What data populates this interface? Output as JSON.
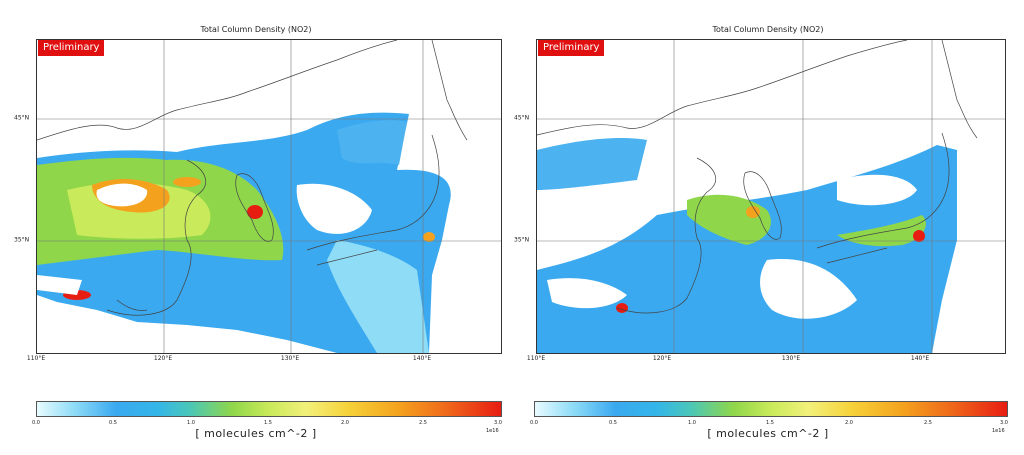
{
  "maps": [
    {
      "title": "Total Column Density (NO2)",
      "badge": "Preliminary",
      "lon_ticks": [
        "110°E",
        "120°E",
        "130°E",
        "140°E"
      ],
      "lat_ticks": [
        "45°N",
        "35°N"
      ],
      "colorbar": {
        "ticks": [
          "0.0",
          "0.5",
          "1.0",
          "1.5",
          "2.0",
          "2.5",
          "3.0"
        ],
        "exponent": "1e16",
        "label": "[ molecules cm^-2 ]"
      }
    },
    {
      "title": "Total Column Density (NO2)",
      "badge": "Preliminary",
      "lon_ticks": [
        "110°E",
        "120°E",
        "130°E",
        "140°E"
      ],
      "lat_ticks": [
        "45°N",
        "35°N"
      ],
      "colorbar": {
        "ticks": [
          "0.0",
          "0.5",
          "1.0",
          "1.5",
          "2.0",
          "2.5",
          "3.0"
        ],
        "exponent": "1e16",
        "label": "[ molecules cm^-2 ]"
      }
    }
  ],
  "colors": {
    "badge": "#e01010",
    "low": "#3aa9f0",
    "mid": "#8fd64a",
    "high": "#f4a21e",
    "max": "#e81d12"
  }
}
